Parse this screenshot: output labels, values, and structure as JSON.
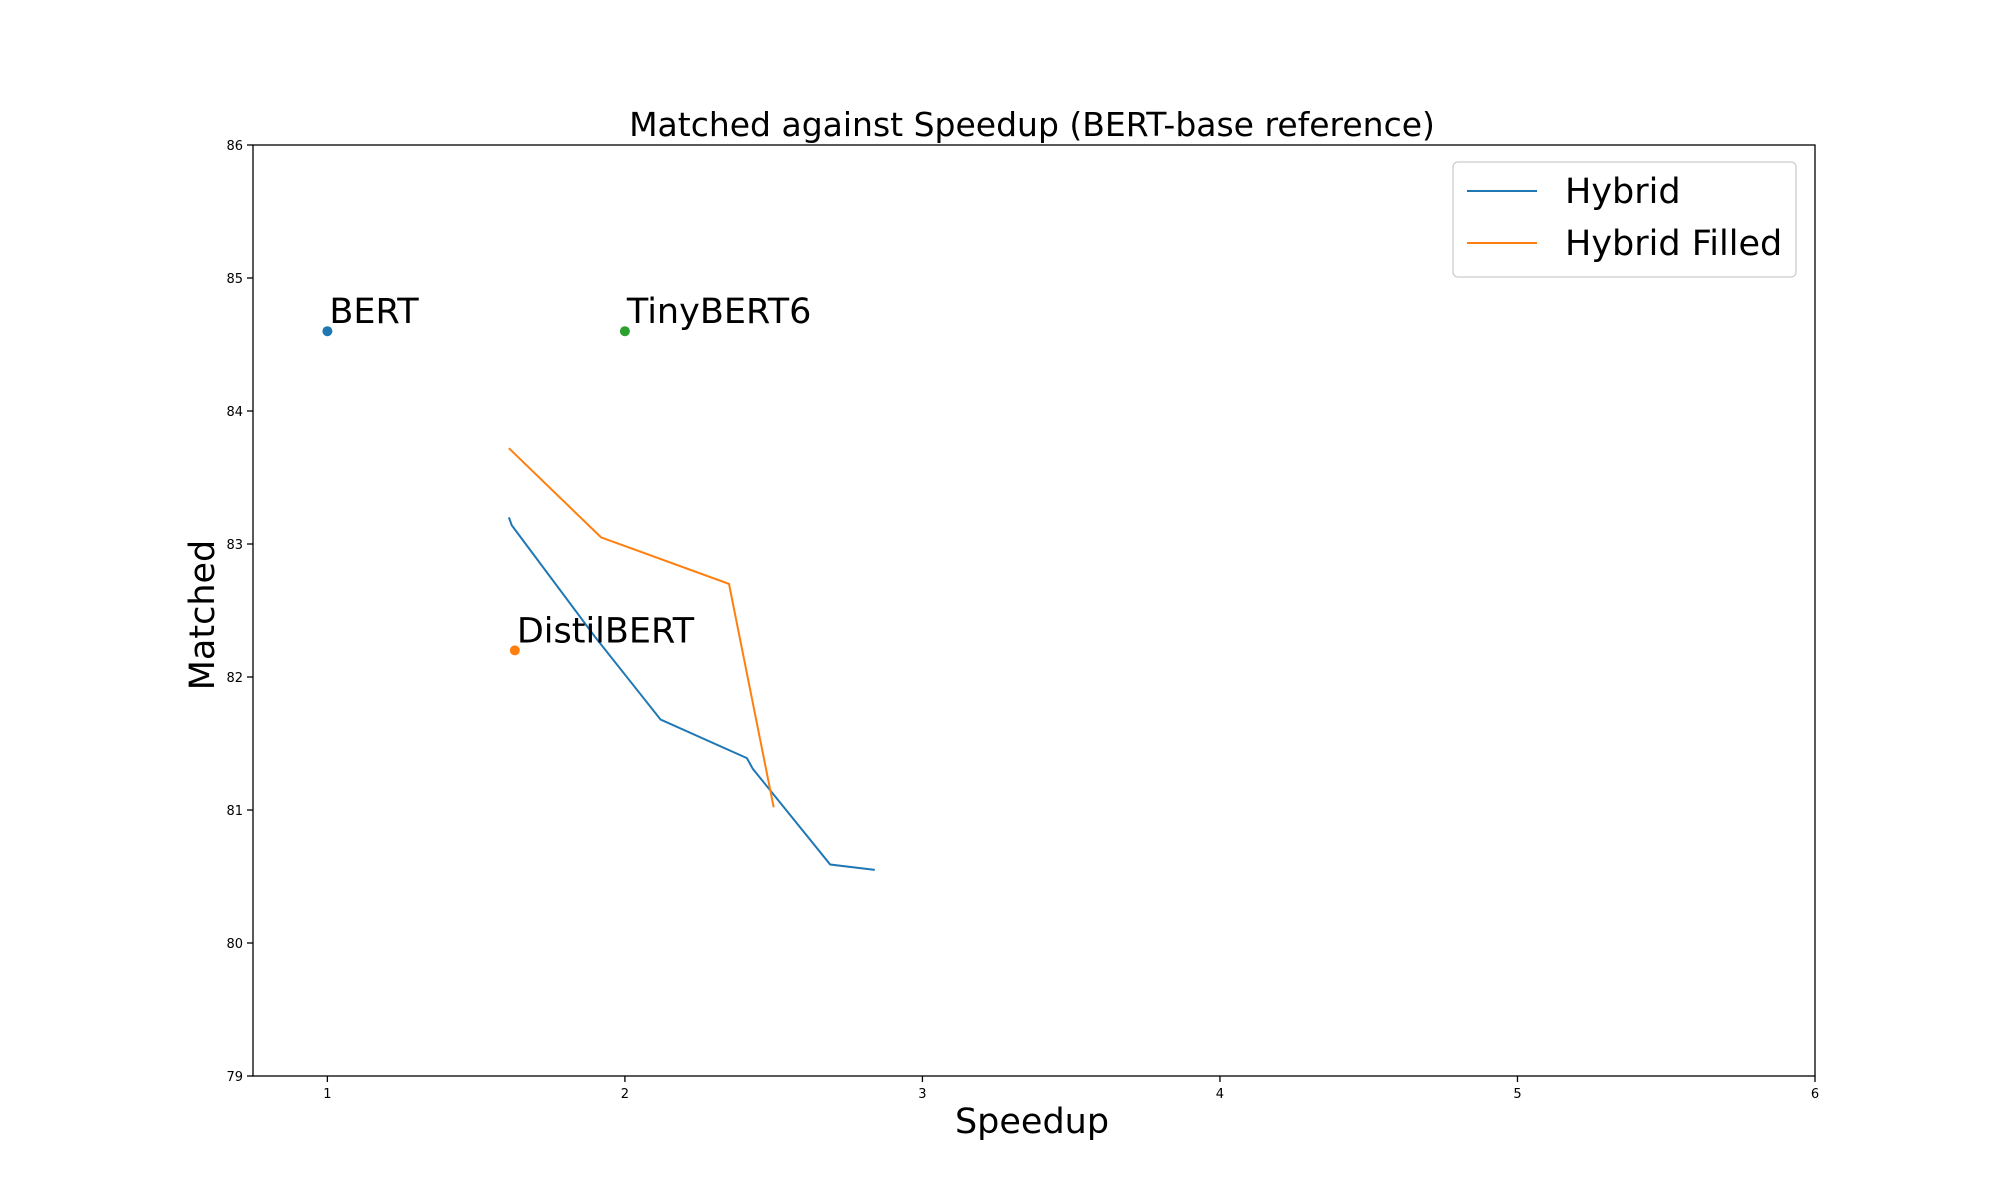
{
  "chart_data": {
    "type": "line",
    "title": "Matched against Speedup (BERT-base reference)",
    "xlabel": "Speedup",
    "ylabel": "Matched",
    "xlim": [
      0.75,
      6
    ],
    "ylim": [
      79,
      86
    ],
    "x_ticks": [
      1,
      2,
      3,
      4,
      5,
      6
    ],
    "y_ticks": [
      79,
      80,
      81,
      82,
      83,
      84,
      85,
      86
    ],
    "grid": false,
    "legend_position": "top-right",
    "series": [
      {
        "name": "Hybrid",
        "color": "#1f77b4",
        "points": [
          [
            1.61,
            83.2
          ],
          [
            1.62,
            83.14
          ],
          [
            1.9,
            82.3
          ],
          [
            2.12,
            81.68
          ],
          [
            2.41,
            81.39
          ],
          [
            2.43,
            81.31
          ],
          [
            2.69,
            80.59
          ],
          [
            2.84,
            80.55
          ]
        ]
      },
      {
        "name": "Hybrid Filled",
        "color": "#ff7f0e",
        "points": [
          [
            1.61,
            83.72
          ],
          [
            1.92,
            83.05
          ],
          [
            2.35,
            82.7
          ],
          [
            2.5,
            81.02
          ]
        ]
      }
    ],
    "annotated_points": [
      {
        "label": "BERT",
        "x": 1.0,
        "y": 84.6,
        "color": "#1f77b4"
      },
      {
        "label": "TinyBERT6",
        "x": 2.0,
        "y": 84.6,
        "color": "#2ca02c"
      },
      {
        "label": "DistilBERT",
        "x": 1.63,
        "y": 82.2,
        "color": "#ff7f0e"
      }
    ]
  }
}
